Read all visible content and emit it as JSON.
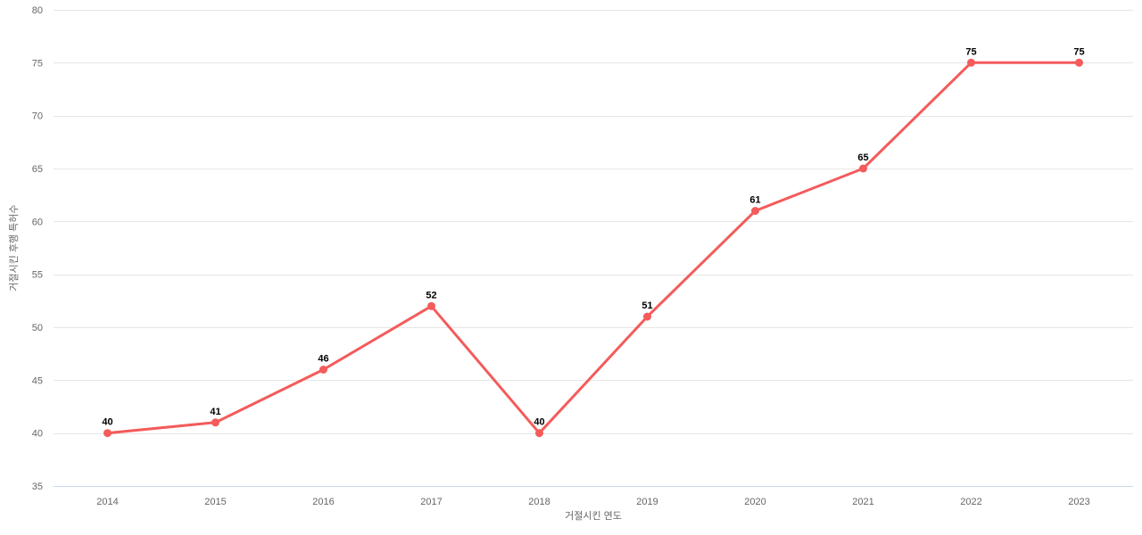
{
  "chart_data": {
    "type": "line",
    "categories": [
      "2014",
      "2015",
      "2016",
      "2017",
      "2018",
      "2019",
      "2020",
      "2021",
      "2022",
      "2023"
    ],
    "values": [
      40,
      41,
      46,
      52,
      40,
      51,
      61,
      65,
      75,
      75
    ],
    "data_labels": [
      "40",
      "41",
      "46",
      "52",
      "40",
      "51",
      "61",
      "65",
      "75",
      "75"
    ],
    "title": "",
    "xlabel": "거절시킨 연도",
    "ylabel": "거절시킨 후행 특허수",
    "ylim": [
      35,
      80
    ],
    "yticks": [
      35,
      40,
      45,
      50,
      55,
      60,
      65,
      70,
      75,
      80
    ],
    "grid": true,
    "legend": false,
    "colors": {
      "series": "#f45b5b",
      "marker": "#f45b5b",
      "gridline": "#e6e6e6",
      "axis_line": "#ccd6eb",
      "tick_label": "#666666",
      "axis_title": "#666666",
      "data_label": "#000000",
      "background": "#ffffff"
    }
  }
}
